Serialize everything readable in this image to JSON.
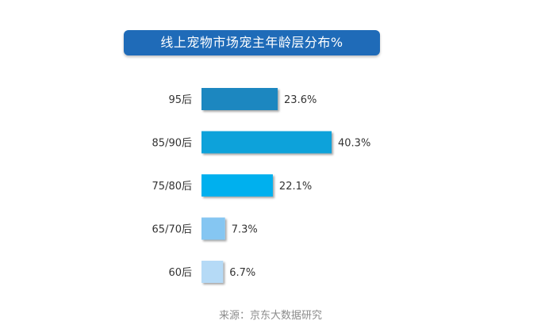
{
  "source": "来源：京东大数据研究",
  "chart_data": {
    "type": "bar",
    "orientation": "horizontal",
    "title": "线上宠物市场宠主年龄层分布%",
    "categories": [
      "95后",
      "85/90后",
      "75/80后",
      "65/70后",
      "60后"
    ],
    "values": [
      23.6,
      40.3,
      22.1,
      7.3,
      6.7
    ],
    "value_labels": [
      "23.6%",
      "40.3%",
      "22.1%",
      "7.3%",
      "6.7%"
    ],
    "colors": [
      "#1a87c0",
      "#0aa2da",
      "#00b0ee",
      "#85c6f2",
      "#b5daf6"
    ],
    "xlabel": "",
    "ylabel": "",
    "grid": false,
    "legend": "none"
  }
}
